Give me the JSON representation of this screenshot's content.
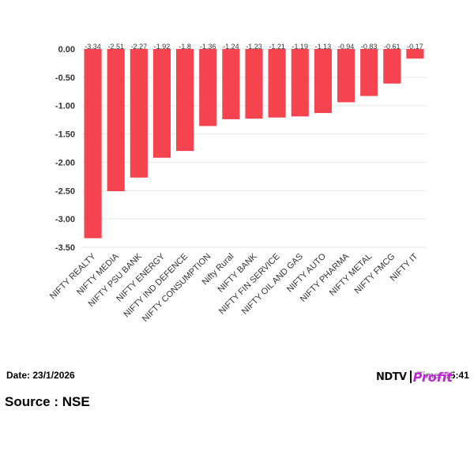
{
  "chart_data": {
    "type": "bar",
    "categories": [
      "NIFTY REALTY",
      "NIFTY MEDIA",
      "NIFTY PSU BANK",
      "NIFTY ENERGY",
      "NIFTY IND DEFENCE",
      "NIFTY CONSUMPTION",
      "Nifty Rural",
      "NIFTY BANK",
      "NIFTY FIN SERVICE",
      "NIFTY OIL AND GAS",
      "NIFTY AUTO",
      "NIFTY PHARMA",
      "NIFTY METAL",
      "NIFTY FMCG",
      "NIFTY IT"
    ],
    "values": [
      -3.34,
      -2.51,
      -2.27,
      -1.92,
      -1.8,
      -1.36,
      -1.24,
      -1.23,
      -1.21,
      -1.19,
      -1.13,
      -0.94,
      -0.83,
      -0.61,
      -0.17
    ],
    "value_labels": [
      "-3.34",
      "-2.51",
      "-2.27",
      "-1.92",
      "-1.8",
      "-1.36",
      "-1.24",
      "-1.23",
      "-1.21",
      "-1.19",
      "-1.13",
      "-0.94",
      "-0.83",
      "-0.61",
      "-0.17"
    ],
    "yticks": [
      "0.00",
      "-0.50",
      "-1.00",
      "-1.50",
      "-2.00",
      "-2.50",
      "-3.00",
      "-3.50"
    ],
    "ylim": [
      -3.5,
      0
    ],
    "bar_color": "#f5434f",
    "grid": true,
    "title": "",
    "xlabel": "",
    "ylabel": ""
  },
  "footer": {
    "date": "Date: 23/1/2026",
    "time": "Time: 15:41",
    "source": "Source : NSE"
  },
  "logo": {
    "ndtv": "NDTV",
    "profit": "Profit"
  }
}
